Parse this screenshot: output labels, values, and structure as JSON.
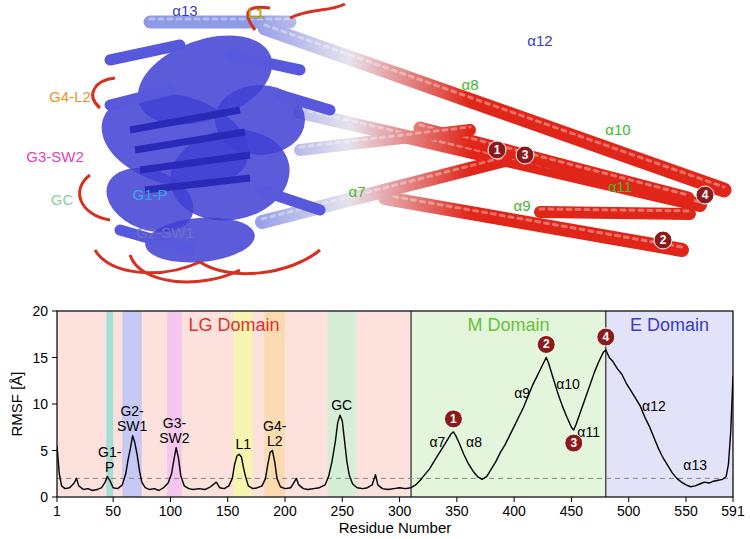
{
  "structure": {
    "labels": [
      {
        "text": "α13",
        "color": "#3a3ac8"
      },
      {
        "text": "L1",
        "color": "#e6d800"
      },
      {
        "text": "α12",
        "color": "#3a3ac8"
      },
      {
        "text": "α8",
        "color": "#44b82a"
      },
      {
        "text": "α10",
        "color": "#44b82a"
      },
      {
        "text": "α7",
        "color": "#44b82a"
      },
      {
        "text": "α9",
        "color": "#44b82a"
      },
      {
        "text": "α11",
        "color": "#44b82a"
      },
      {
        "text": "G4-L2",
        "color": "#f0901e"
      },
      {
        "text": "G3-SW2",
        "color": "#e040c0"
      },
      {
        "text": "GC",
        "color": "#8ccf9c"
      },
      {
        "text": "G1-P",
        "color": "#3aa8e0"
      },
      {
        "text": "G2-SW1",
        "color": "#7070cc"
      }
    ],
    "markers": [
      "1",
      "2",
      "3",
      "4"
    ]
  },
  "chart_data": {
    "type": "line",
    "color": "#000000",
    "x_label": "Residue Number",
    "y_label": "RMSF [Å]",
    "xlim": [
      1,
      591
    ],
    "ylim": [
      0,
      20
    ],
    "xticks": [
      1,
      50,
      100,
      150,
      200,
      250,
      300,
      350,
      400,
      450,
      500,
      550,
      591
    ],
    "yticks": [
      0,
      5,
      10,
      15,
      20
    ],
    "reference_line": 2,
    "domains": [
      {
        "label": "LG Domain",
        "start": 1,
        "end": 310,
        "color": "#fde1dc",
        "text_color": "#e0302a"
      },
      {
        "label": "M Domain",
        "start": 310,
        "end": 480,
        "color": "#e3f6dc",
        "text_color": "#66c23a"
      },
      {
        "label": "E Domain",
        "start": 480,
        "end": 591,
        "color": "#e2e2f8",
        "text_color": "#3a3ac8"
      }
    ],
    "regions": [
      {
        "lines": [
          "G1-",
          "P"
        ],
        "start": 44,
        "end": 50,
        "color": "#a6ded6"
      },
      {
        "lines": [
          "G2-",
          "SW1"
        ],
        "start": 58,
        "end": 75,
        "color": "#c8c8f4"
      },
      {
        "lines": [
          "G3-",
          "SW2"
        ],
        "start": 97,
        "end": 110,
        "color": "#f5c6ee"
      },
      {
        "lines": [
          "L1"
        ],
        "start": 155,
        "end": 172,
        "color": "#f7f3b0"
      },
      {
        "lines": [
          "G4-",
          "L2"
        ],
        "start": 182,
        "end": 200,
        "color": "#fbdcb0"
      },
      {
        "lines": [
          "GC"
        ],
        "start": 237,
        "end": 262,
        "color": "#d6eed6"
      }
    ],
    "annotations": [
      {
        "text": "α7",
        "x": 333,
        "y": 5.4
      },
      {
        "text": "α8",
        "x": 365,
        "y": 5.4
      },
      {
        "text": "α9",
        "x": 407,
        "y": 10.6
      },
      {
        "text": "α10",
        "x": 447,
        "y": 11.6
      },
      {
        "text": "α11",
        "x": 465,
        "y": 6.4
      },
      {
        "text": "α12",
        "x": 522,
        "y": 9.2
      },
      {
        "text": "α13",
        "x": 558,
        "y": 2.9
      }
    ],
    "peak_markers": [
      {
        "label": "1",
        "x": 347,
        "y": 8.4
      },
      {
        "label": "2",
        "x": 428,
        "y": 16.4
      },
      {
        "label": "3",
        "x": 452,
        "y": 5.8
      },
      {
        "label": "4",
        "x": 480,
        "y": 17.2
      }
    ],
    "x": [
      1,
      3,
      5,
      8,
      12,
      16,
      18,
      20,
      24,
      28,
      32,
      36,
      40,
      43,
      45,
      47,
      50,
      54,
      58,
      61,
      63,
      65,
      67,
      69,
      71,
      73,
      75,
      78,
      82,
      86,
      90,
      94,
      98,
      101,
      103,
      105,
      107,
      109,
      112,
      116,
      120,
      125,
      130,
      135,
      140,
      143,
      147,
      151,
      154,
      156,
      158,
      160,
      162,
      164,
      166,
      168,
      172,
      176,
      180,
      183,
      185,
      187,
      189,
      191,
      193,
      196,
      200,
      205,
      208,
      210,
      212,
      216,
      220,
      225,
      230,
      235,
      238,
      241,
      244,
      246,
      248,
      250,
      252,
      254,
      256,
      259,
      263,
      268,
      272,
      276,
      279,
      281,
      285,
      290,
      295,
      300,
      305,
      310,
      314,
      318,
      322,
      326,
      330,
      334,
      338,
      342,
      345,
      347,
      349,
      352,
      356,
      360,
      364,
      368,
      372,
      376,
      380,
      384,
      388,
      392,
      396,
      400,
      404,
      408,
      412,
      416,
      420,
      424,
      428,
      430,
      434,
      438,
      442,
      446,
      450,
      452,
      454,
      458,
      462,
      466,
      470,
      474,
      478,
      480,
      483,
      486,
      490,
      494,
      498,
      502,
      506,
      510,
      514,
      518,
      522,
      526,
      530,
      534,
      538,
      542,
      546,
      550,
      554,
      558,
      562,
      566,
      570,
      574,
      578,
      582,
      585,
      587,
      589,
      591
    ],
    "values": [
      5.5,
      2.5,
      1.2,
      0.9,
      1.0,
      1.5,
      2.0,
      1.2,
      0.8,
      0.9,
      0.7,
      0.8,
      1.0,
      1.6,
      2.2,
      1.8,
      1.0,
      0.9,
      1.3,
      2.5,
      4.0,
      5.2,
      6.6,
      5.8,
      4.5,
      2.8,
      1.6,
      1.0,
      0.8,
      0.9,
      0.7,
      1.0,
      1.5,
      2.5,
      4.0,
      5.3,
      4.2,
      2.3,
      1.2,
      0.9,
      0.8,
      0.9,
      0.8,
      1.1,
      1.6,
      1.0,
      0.9,
      1.2,
      2.0,
      3.5,
      4.4,
      4.6,
      4.3,
      3.0,
      2.0,
      1.2,
      0.9,
      1.0,
      1.2,
      2.0,
      3.5,
      4.8,
      5.0,
      3.8,
      2.0,
      1.1,
      0.9,
      1.0,
      1.6,
      2.0,
      1.3,
      0.9,
      0.8,
      0.9,
      1.0,
      1.3,
      2.2,
      3.8,
      6.0,
      8.0,
      8.8,
      8.2,
      6.0,
      3.8,
      2.4,
      1.4,
      1.0,
      0.9,
      1.0,
      1.3,
      2.4,
      1.3,
      0.9,
      0.8,
      0.9,
      1.0,
      0.9,
      1.0,
      1.3,
      1.8,
      2.4,
      3.0,
      3.8,
      4.6,
      5.4,
      6.2,
      6.8,
      7.0,
      6.6,
      5.8,
      4.6,
      3.6,
      2.8,
      2.2,
      1.9,
      2.2,
      3.0,
      3.8,
      4.8,
      5.6,
      6.6,
      7.6,
      8.6,
      9.6,
      10.8,
      12.0,
      13.0,
      14.0,
      15.0,
      14.4,
      12.8,
      11.2,
      9.8,
      8.6,
      7.5,
      7.2,
      7.8,
      9.2,
      10.6,
      12.0,
      13.4,
      14.6,
      15.6,
      15.8,
      15.0,
      14.6,
      13.8,
      13.2,
      12.2,
      11.4,
      10.6,
      9.8,
      8.6,
      7.6,
      6.4,
      5.2,
      4.2,
      3.4,
      2.6,
      2.0,
      1.6,
      1.3,
      1.1,
      1.2,
      1.4,
      1.6,
      1.5,
      1.7,
      1.8,
      1.9,
      2.2,
      3.5,
      7.0,
      13.0
    ]
  }
}
